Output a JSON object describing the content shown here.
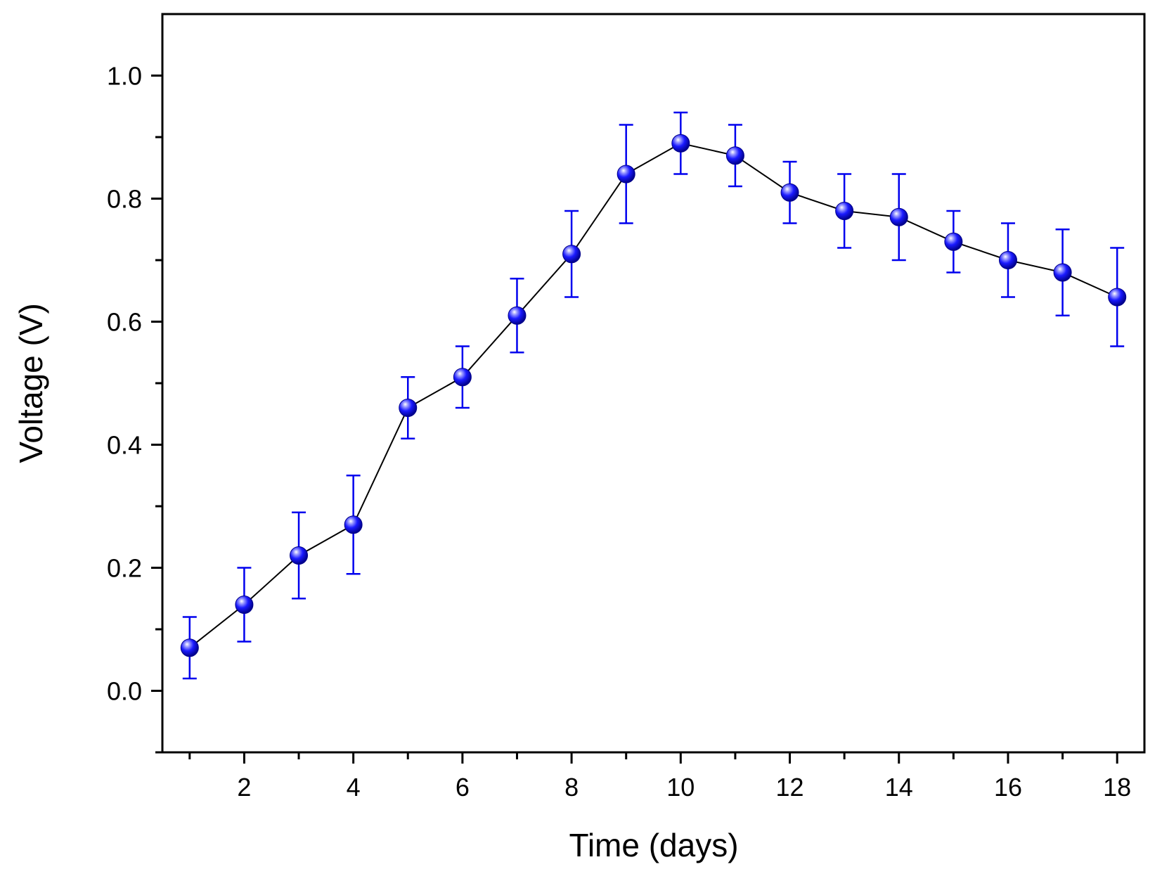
{
  "chart_data": {
    "type": "line",
    "title": "",
    "xlabel": "Time (days)",
    "ylabel": "Voltage (V)",
    "xlim": [
      0.5,
      18.5
    ],
    "ylim": [
      -0.1,
      1.1
    ],
    "xticks_major": [
      2,
      4,
      6,
      8,
      10,
      12,
      14,
      16,
      18
    ],
    "xticks_minor": [
      1,
      3,
      5,
      7,
      9,
      11,
      13,
      15,
      17
    ],
    "xtick_labels": [
      "2",
      "4",
      "6",
      "8",
      "10",
      "12",
      "14",
      "16",
      "18"
    ],
    "yticks_major": [
      0.0,
      0.2,
      0.4,
      0.6,
      0.8,
      1.0
    ],
    "yticks_minor": [
      -0.1,
      0.1,
      0.3,
      0.5,
      0.7,
      0.9
    ],
    "ytick_labels": [
      "0.0",
      "0.2",
      "0.4",
      "0.6",
      "0.8",
      "1.0"
    ],
    "grid": false,
    "legend": "none",
    "series": [
      {
        "name": "Voltage",
        "line_color": "#000000",
        "marker_color": "#0000ee",
        "errorbar_color": "#0000ee",
        "x": [
          1,
          2,
          3,
          4,
          5,
          6,
          7,
          8,
          9,
          10,
          11,
          12,
          13,
          14,
          15,
          16,
          17,
          18
        ],
        "y": [
          0.07,
          0.14,
          0.22,
          0.27,
          0.46,
          0.51,
          0.61,
          0.71,
          0.84,
          0.89,
          0.87,
          0.81,
          0.78,
          0.77,
          0.73,
          0.7,
          0.68,
          0.64
        ],
        "yerr": [
          0.05,
          0.06,
          0.07,
          0.08,
          0.05,
          0.05,
          0.06,
          0.07,
          0.08,
          0.05,
          0.05,
          0.05,
          0.06,
          0.07,
          0.05,
          0.06,
          0.07,
          0.08
        ]
      }
    ]
  }
}
